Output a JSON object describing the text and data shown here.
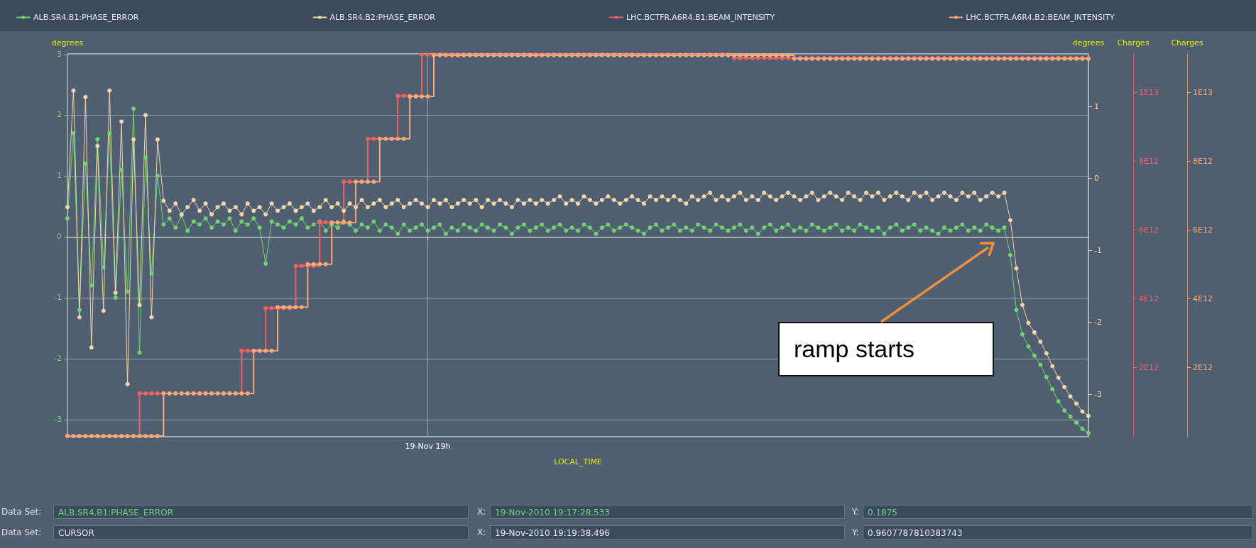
{
  "chart_data": {
    "type": "line",
    "xlabel": "LOCAL_TIME",
    "ylabel": "degrees",
    "y2label": "degrees",
    "y3label": "Charges",
    "categories": [
      null,
      null,
      null,
      null,
      null,
      null,
      null,
      null,
      null,
      null,
      null,
      null,
      null,
      null,
      null,
      null,
      null,
      null,
      null,
      null,
      null,
      null,
      null,
      null,
      null,
      null,
      null,
      null,
      null,
      null,
      null,
      null,
      null,
      null,
      null,
      null,
      null,
      null,
      null,
      null,
      null,
      null,
      null,
      null,
      null,
      null,
      null,
      null,
      null,
      null,
      null,
      null,
      null,
      null,
      null,
      null,
      null,
      null,
      null,
      null,
      "19-Nov 19h",
      null,
      null,
      null,
      null,
      null,
      null,
      null,
      null,
      null,
      null,
      null,
      null,
      null,
      null,
      null,
      null,
      null,
      null,
      null,
      null,
      null,
      null,
      null,
      null,
      null,
      null,
      null,
      null,
      null,
      null,
      null,
      null,
      null,
      null,
      null,
      null,
      null,
      null,
      null,
      null,
      null,
      null,
      null,
      null,
      null,
      null,
      null,
      null,
      null,
      null,
      null,
      null,
      null,
      null,
      null,
      null,
      null,
      null,
      null,
      null,
      null,
      null,
      null,
      null,
      null,
      null,
      null,
      null,
      null,
      null,
      null,
      null,
      null,
      null,
      null,
      null,
      null,
      null,
      null,
      null,
      null,
      null,
      null,
      null,
      null,
      null,
      null,
      null,
      null,
      null,
      null,
      null,
      null,
      null,
      null,
      null,
      null,
      null,
      null,
      null,
      null,
      null,
      null,
      null,
      null,
      null,
      null,
      null,
      null,
      null
    ],
    "series": [
      {
        "name": "ALB.SR4.B1:PHASE_ERROR",
        "axis": "y",
        "color": "#6fd46f",
        "values": [
          0.3,
          1.7,
          -1.2,
          1.2,
          -0.8,
          1.6,
          -0.5,
          1.7,
          -1.0,
          1.1,
          -0.9,
          2.1,
          -1.9,
          1.3,
          -0.6,
          1.0,
          0.2,
          0.3,
          0.15,
          0.35,
          0.1,
          0.25,
          0.2,
          0.3,
          0.15,
          0.25,
          0.2,
          0.3,
          0.1,
          0.25,
          0.2,
          0.3,
          0.15,
          -0.44,
          0.25,
          0.2,
          0.15,
          0.25,
          0.2,
          0.3,
          0.15,
          0.2,
          0.25,
          0.1,
          0.2,
          0.15,
          0.25,
          0.2,
          0.1,
          0.2,
          0.15,
          0.25,
          0.1,
          0.2,
          0.15,
          0.05,
          0.2,
          0.1,
          0.15,
          0.2,
          0.1,
          0.15,
          0.2,
          0.05,
          0.15,
          0.1,
          0.2,
          0.15,
          0.1,
          0.2,
          0.15,
          0.1,
          0.2,
          0.15,
          0.05,
          0.15,
          0.2,
          0.1,
          0.15,
          0.2,
          0.1,
          0.15,
          0.2,
          0.1,
          0.15,
          0.1,
          0.2,
          0.15,
          0.05,
          0.15,
          0.2,
          0.1,
          0.15,
          0.2,
          0.15,
          0.1,
          0.05,
          0.15,
          0.2,
          0.1,
          0.15,
          0.2,
          0.1,
          0.15,
          0.1,
          0.2,
          0.15,
          0.1,
          0.2,
          0.15,
          0.1,
          0.15,
          0.2,
          0.1,
          0.15,
          0.05,
          0.15,
          0.2,
          0.1,
          0.15,
          0.2,
          0.1,
          0.15,
          0.1,
          0.2,
          0.15,
          0.1,
          0.15,
          0.2,
          0.1,
          0.15,
          0.1,
          0.2,
          0.15,
          0.1,
          0.15,
          0.05,
          0.15,
          0.2,
          0.1,
          0.15,
          0.2,
          0.1,
          0.15,
          0.1,
          0.05,
          0.15,
          0.1,
          0.15,
          0.2,
          0.1,
          0.15,
          0.1,
          0.2,
          0.15,
          0.1,
          0.15,
          -0.3,
          -1.2,
          -1.6,
          -1.8,
          -1.95,
          -2.1,
          -2.3,
          -2.5,
          -2.7,
          -2.85,
          -2.95,
          -3.05,
          -3.15,
          -3.22
        ]
      },
      {
        "name": "ALB.SR4.B2:PHASE_ERROR",
        "axis": "y2",
        "color": "#f3d6a8",
        "values": [
          -0.4,
          1.22,
          -1.93,
          1.13,
          -2.35,
          0.45,
          -1.84,
          1.22,
          -1.59,
          0.79,
          -2.86,
          0.54,
          -1.76,
          0.88,
          -1.93,
          0.54,
          -0.31,
          -0.45,
          -0.35,
          -0.5,
          -0.4,
          -0.3,
          -0.45,
          -0.35,
          -0.5,
          -0.4,
          -0.35,
          -0.45,
          -0.4,
          -0.5,
          -0.35,
          -0.45,
          -0.4,
          -0.5,
          -0.35,
          -0.45,
          -0.4,
          -0.35,
          -0.45,
          -0.4,
          -0.35,
          -0.45,
          -0.4,
          -0.3,
          -0.4,
          -0.35,
          -0.45,
          -0.35,
          -0.4,
          -0.3,
          -0.4,
          -0.35,
          -0.3,
          -0.4,
          -0.35,
          -0.3,
          -0.4,
          -0.35,
          -0.3,
          -0.35,
          -0.4,
          -0.3,
          -0.35,
          -0.3,
          -0.4,
          -0.35,
          -0.3,
          -0.35,
          -0.3,
          -0.4,
          -0.3,
          -0.35,
          -0.3,
          -0.35,
          -0.4,
          -0.3,
          -0.35,
          -0.3,
          -0.35,
          -0.3,
          -0.35,
          -0.3,
          -0.25,
          -0.35,
          -0.3,
          -0.35,
          -0.25,
          -0.3,
          -0.35,
          -0.3,
          -0.25,
          -0.3,
          -0.35,
          -0.3,
          -0.25,
          -0.3,
          -0.35,
          -0.25,
          -0.3,
          -0.25,
          -0.3,
          -0.25,
          -0.3,
          -0.35,
          -0.25,
          -0.3,
          -0.25,
          -0.2,
          -0.3,
          -0.25,
          -0.3,
          -0.25,
          -0.2,
          -0.3,
          -0.25,
          -0.3,
          -0.2,
          -0.25,
          -0.3,
          -0.25,
          -0.2,
          -0.25,
          -0.3,
          -0.25,
          -0.2,
          -0.3,
          -0.25,
          -0.2,
          -0.25,
          -0.3,
          -0.2,
          -0.25,
          -0.3,
          -0.2,
          -0.25,
          -0.2,
          -0.3,
          -0.25,
          -0.2,
          -0.25,
          -0.3,
          -0.2,
          -0.25,
          -0.2,
          -0.3,
          -0.25,
          -0.2,
          -0.25,
          -0.3,
          -0.2,
          -0.25,
          -0.2,
          -0.3,
          -0.25,
          -0.2,
          -0.25,
          -0.2,
          -0.58,
          -1.25,
          -1.76,
          -2.01,
          -2.14,
          -2.27,
          -2.43,
          -2.61,
          -2.77,
          -2.9,
          -3.03,
          -3.13,
          -3.24,
          -3.3
        ]
      },
      {
        "name": "LHC.BCTFR.A6R4.B1:BEAM_INTENSITY",
        "type": "step",
        "axis": "y3",
        "color": "#f06262",
        "values": [
          0,
          0,
          0,
          0,
          0,
          0,
          0,
          0,
          0,
          0,
          0,
          0,
          1240000000000.0,
          1240000000000.0,
          1240000000000.0,
          1240000000000.0,
          1240000000000.0,
          1240000000000.0,
          1240000000000.0,
          1240000000000.0,
          1240000000000.0,
          1240000000000.0,
          1240000000000.0,
          1240000000000.0,
          1240000000000.0,
          1240000000000.0,
          1240000000000.0,
          1240000000000.0,
          1240000000000.0,
          2480000000000.0,
          2480000000000.0,
          2480000000000.0,
          2480000000000.0,
          3720000000000.0,
          3720000000000.0,
          3720000000000.0,
          3720000000000.0,
          3720000000000.0,
          4950000000000.0,
          4950000000000.0,
          4950000000000.0,
          4950000000000.0,
          6220000000000.0,
          6220000000000.0,
          6220000000000.0,
          6220000000000.0,
          7400000000000.0,
          7400000000000.0,
          7400000000000.0,
          7400000000000.0,
          8650000000000.0,
          8650000000000.0,
          8650000000000.0,
          8650000000000.0,
          8650000000000.0,
          9900000000000.0,
          9900000000000.0,
          9900000000000.0,
          9900000000000.0,
          11100000000000.0,
          11100000000000.0,
          11100000000000.0,
          11100000000000.0,
          11100000000000.0,
          11100000000000.0,
          11100000000000.0,
          11100000000000.0,
          11100000000000.0,
          11100000000000.0,
          11100000000000.0,
          11100000000000.0,
          11100000000000.0,
          11100000000000.0,
          11100000000000.0,
          11100000000000.0,
          11100000000000.0,
          11100000000000.0,
          11100000000000.0,
          11100000000000.0,
          11100000000000.0,
          11100000000000.0,
          11100000000000.0,
          11100000000000.0,
          11100000000000.0,
          11100000000000.0,
          11100000000000.0,
          11100000000000.0,
          11100000000000.0,
          11100000000000.0,
          11100000000000.0,
          11100000000000.0,
          11100000000000.0,
          11100000000000.0,
          11100000000000.0,
          11100000000000.0,
          11100000000000.0,
          11100000000000.0,
          11100000000000.0,
          11100000000000.0,
          11100000000000.0,
          11100000000000.0,
          11100000000000.0,
          11100000000000.0,
          11100000000000.0,
          11100000000000.0,
          11100000000000.0,
          11100000000000.0,
          11100000000000.0,
          11100000000000.0,
          11100000000000.0,
          11100000000000.0,
          11000000000000.0,
          11000000000000.0,
          11000000000000.0,
          11000000000000.0,
          11000000000000.0,
          11000000000000.0,
          11000000000000.0,
          11000000000000.0,
          11000000000000.0,
          11000000000000.0,
          11000000000000.0,
          11000000000000.0,
          11000000000000.0,
          11000000000000.0,
          11000000000000.0,
          11000000000000.0,
          11000000000000.0,
          11000000000000.0,
          11000000000000.0,
          11000000000000.0,
          11000000000000.0,
          11000000000000.0,
          11000000000000.0,
          11000000000000.0,
          11000000000000.0,
          11000000000000.0,
          11000000000000.0,
          11000000000000.0,
          11000000000000.0,
          11000000000000.0,
          11000000000000.0,
          11000000000000.0,
          11000000000000.0,
          11000000000000.0,
          11000000000000.0,
          11000000000000.0,
          11000000000000.0,
          11000000000000.0,
          11000000000000.0,
          11000000000000.0,
          11000000000000.0,
          11000000000000.0,
          11000000000000.0,
          11000000000000.0,
          11000000000000.0,
          11000000000000.0,
          11000000000000.0,
          11000000000000.0,
          11000000000000.0,
          11000000000000.0,
          11000000000000.0,
          11000000000000.0,
          11000000000000.0,
          11000000000000.0,
          11000000000000.0,
          11000000000000.0,
          11000000000000.0,
          11000000000000.0,
          11000000000000.0,
          11000000000000.0
        ]
      },
      {
        "name": "LHC.BCTFR.A6R4.B2:BEAM_INTENSITY",
        "type": "step",
        "axis": "y3",
        "color": "#f7a978",
        "values": [
          0,
          0,
          0,
          0,
          0,
          0,
          0,
          0,
          0,
          0,
          0,
          0,
          0,
          0,
          0,
          0,
          1240000000000.0,
          1240000000000.0,
          1240000000000.0,
          1240000000000.0,
          1240000000000.0,
          1240000000000.0,
          1240000000000.0,
          1240000000000.0,
          1240000000000.0,
          1240000000000.0,
          1240000000000.0,
          1240000000000.0,
          1240000000000.0,
          1240000000000.0,
          1240000000000.0,
          2480000000000.0,
          2480000000000.0,
          2480000000000.0,
          2480000000000.0,
          3750000000000.0,
          3750000000000.0,
          3750000000000.0,
          3750000000000.0,
          3750000000000.0,
          5000000000000.0,
          5000000000000.0,
          5000000000000.0,
          5000000000000.0,
          6210000000000.0,
          6210000000000.0,
          6210000000000.0,
          6210000000000.0,
          7400000000000.0,
          7400000000000.0,
          7400000000000.0,
          7400000000000.0,
          8650000000000.0,
          8650000000000.0,
          8650000000000.0,
          8650000000000.0,
          8650000000000.0,
          9880000000000.0,
          9880000000000.0,
          9880000000000.0,
          9880000000000.0,
          11080000000000.0,
          11080000000000.0,
          11080000000000.0,
          11080000000000.0,
          11080000000000.0,
          11080000000000.0,
          11080000000000.0,
          11080000000000.0,
          11080000000000.0,
          11080000000000.0,
          11080000000000.0,
          11080000000000.0,
          11080000000000.0,
          11080000000000.0,
          11080000000000.0,
          11080000000000.0,
          11080000000000.0,
          11080000000000.0,
          11080000000000.0,
          11080000000000.0,
          11080000000000.0,
          11080000000000.0,
          11080000000000.0,
          11080000000000.0,
          11080000000000.0,
          11080000000000.0,
          11080000000000.0,
          11080000000000.0,
          11080000000000.0,
          11080000000000.0,
          11080000000000.0,
          11080000000000.0,
          11080000000000.0,
          11080000000000.0,
          11080000000000.0,
          11080000000000.0,
          11080000000000.0,
          11080000000000.0,
          11080000000000.0,
          11080000000000.0,
          11080000000000.0,
          11080000000000.0,
          11080000000000.0,
          11080000000000.0,
          11080000000000.0,
          11080000000000.0,
          11080000000000.0,
          11080000000000.0,
          11080000000000.0,
          11080000000000.0,
          11080000000000.0,
          11080000000000.0,
          11080000000000.0,
          11080000000000.0,
          11080000000000.0,
          11080000000000.0,
          11080000000000.0,
          11080000000000.0,
          11080000000000.0,
          11080000000000.0,
          10980000000000.0,
          10980000000000.0,
          10980000000000.0,
          10980000000000.0,
          10980000000000.0,
          10980000000000.0,
          10980000000000.0,
          10980000000000.0,
          10980000000000.0,
          10980000000000.0,
          10980000000000.0,
          10980000000000.0,
          10980000000000.0,
          10980000000000.0,
          10980000000000.0,
          10980000000000.0,
          10980000000000.0,
          10980000000000.0,
          10980000000000.0,
          10980000000000.0,
          10980000000000.0,
          10980000000000.0,
          10980000000000.0,
          10980000000000.0,
          10980000000000.0,
          10980000000000.0,
          10980000000000.0,
          10980000000000.0,
          10980000000000.0,
          10980000000000.0,
          10980000000000.0,
          10980000000000.0,
          10980000000000.0,
          10980000000000.0,
          10980000000000.0,
          10980000000000.0,
          10980000000000.0,
          10980000000000.0,
          10980000000000.0,
          10980000000000.0,
          10980000000000.0,
          10980000000000.0,
          10980000000000.0,
          10980000000000.0,
          10980000000000.0,
          10980000000000.0,
          10980000000000.0,
          10980000000000.0,
          10980000000000.0,
          10980000000000.0
        ]
      }
    ],
    "ylim": [
      -3.28,
      3
    ],
    "yticks": [
      -3,
      -2,
      -1,
      0,
      1,
      2,
      3
    ],
    "y2lim": [
      -3.59,
      1.73
    ],
    "y2ticks": [
      -3,
      -2,
      -1,
      0,
      1
    ],
    "y3lim": [
      -20000000000.0,
      11120000000000.0
    ],
    "y3ticks": [
      {
        "value": 2000000000000.0,
        "label": "2E12"
      },
      {
        "value": 4000000000000.0,
        "label": "4E12"
      },
      {
        "value": 6000000000000.0,
        "label": "6E12"
      },
      {
        "value": 8000000000000.0,
        "label": "8E12"
      },
      {
        "value": 10000000000000.0,
        "label": "1E13"
      }
    ],
    "grid": true,
    "legend": "top",
    "marker": "circle",
    "line_style": "solid",
    "annotations": [
      "ramp starts",
      "Data Set:",
      "ALB.SR4.B1:PHASE_ERROR",
      "X:",
      "19-Nov-2010 19:17:28.533",
      "Y:",
      "0.1875",
      "Data Set:",
      "CURSOR",
      "X:",
      "19-Nov-2010 19:19:38.496",
      "Y:",
      "0.9607787810383743"
    ]
  }
}
